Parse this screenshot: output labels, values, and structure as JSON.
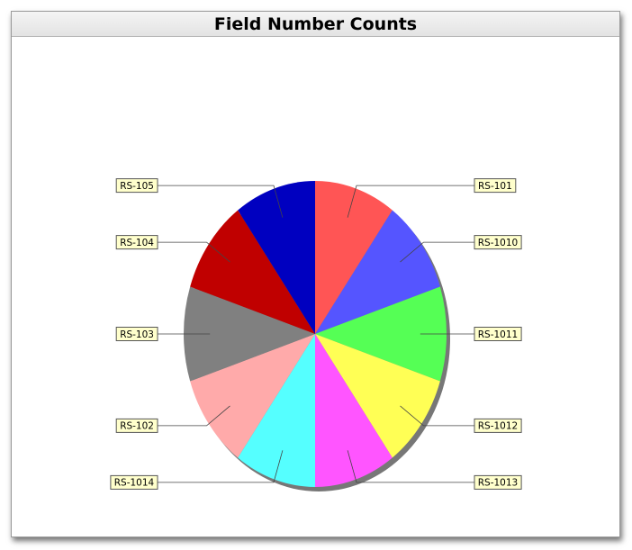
{
  "chart_data": {
    "type": "pie",
    "title": "Field Number Counts",
    "start_angle_deg": 90,
    "direction": "clockwise",
    "categories": [
      "RS-101",
      "RS-1010",
      "RS-1011",
      "RS-1012",
      "RS-1013",
      "RS-1014",
      "RS-102",
      "RS-103",
      "RS-104",
      "RS-105"
    ],
    "values": [
      1,
      1,
      1,
      1,
      1,
      1,
      1,
      1,
      1,
      1
    ],
    "colors": [
      "#ff5555",
      "#5555ff",
      "#55ff55",
      "#ffff55",
      "#ff55ff",
      "#55ffff",
      "#ffaaaa",
      "#808080",
      "#c00000",
      "#0000c0"
    ],
    "label_style": {
      "fill": "#ffffcc",
      "border": "#555555",
      "leader": "#444444"
    },
    "shadow_color": "#777777"
  }
}
